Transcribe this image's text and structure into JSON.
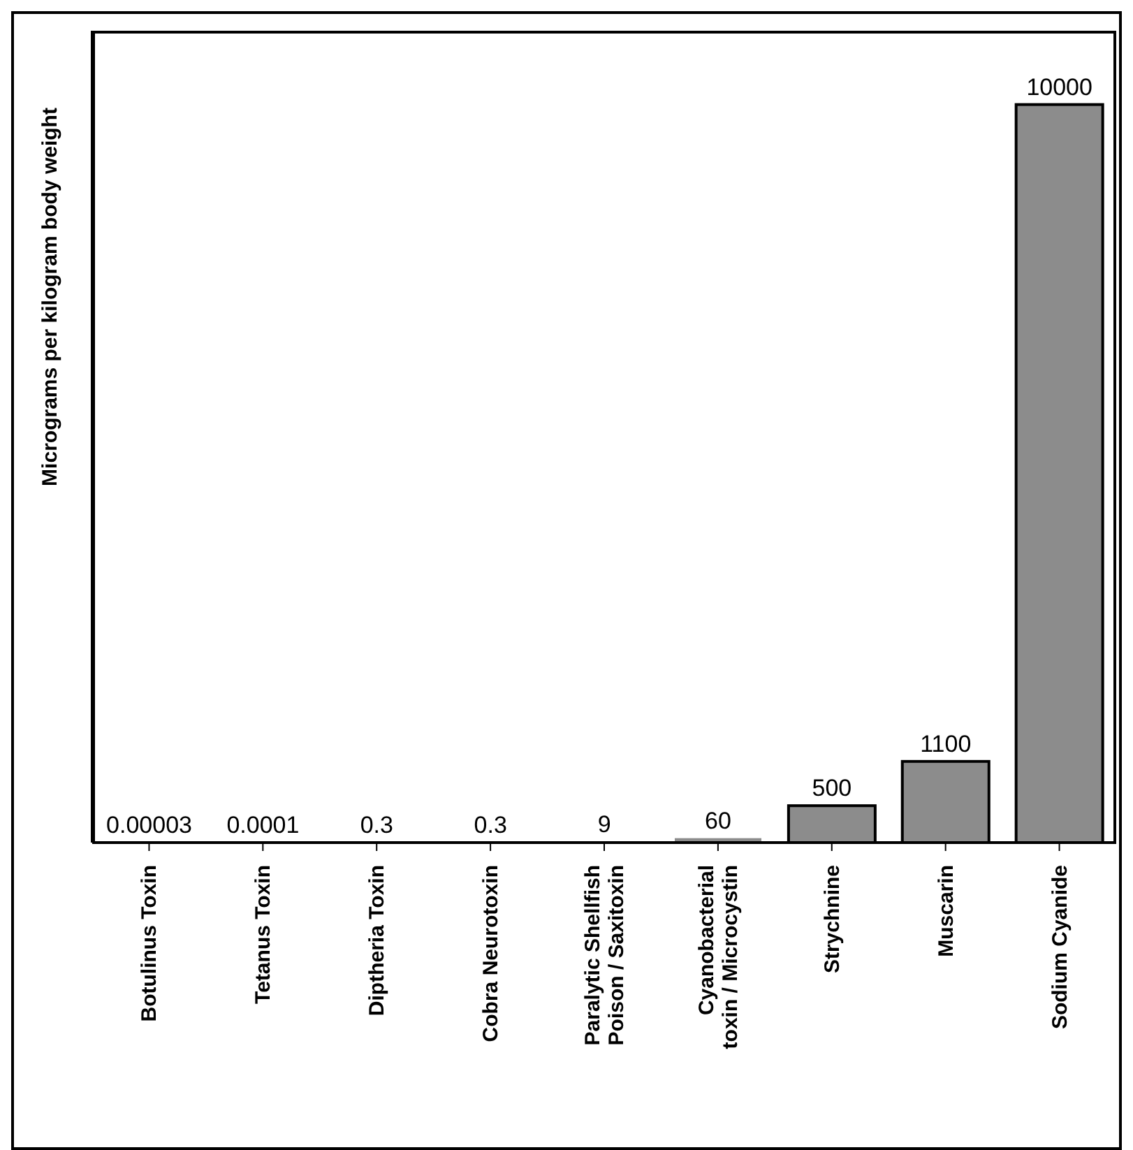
{
  "chart_data": {
    "type": "bar",
    "ylabel": "Micrograms per kilogram body weight",
    "categories": [
      "Botulinus Toxin",
      "Tetanus Toxin",
      "Diptheria Toxin",
      "Cobra Neurotoxin",
      "Paralytic Shellfish Poison / Saxitoxin",
      "Cyanobacterial toxin / Microcystin",
      "Strychnine",
      "Muscarin",
      "Sodium Cyanide"
    ],
    "values": [
      3e-05,
      0.0001,
      0.3,
      0.3,
      9,
      60,
      500,
      1100,
      10000
    ],
    "value_labels": [
      "0.00003",
      "0.0001",
      "0.3",
      "0.3",
      "9",
      "60",
      "500",
      "1100",
      "10000"
    ],
    "color": "#8c8c8c"
  }
}
